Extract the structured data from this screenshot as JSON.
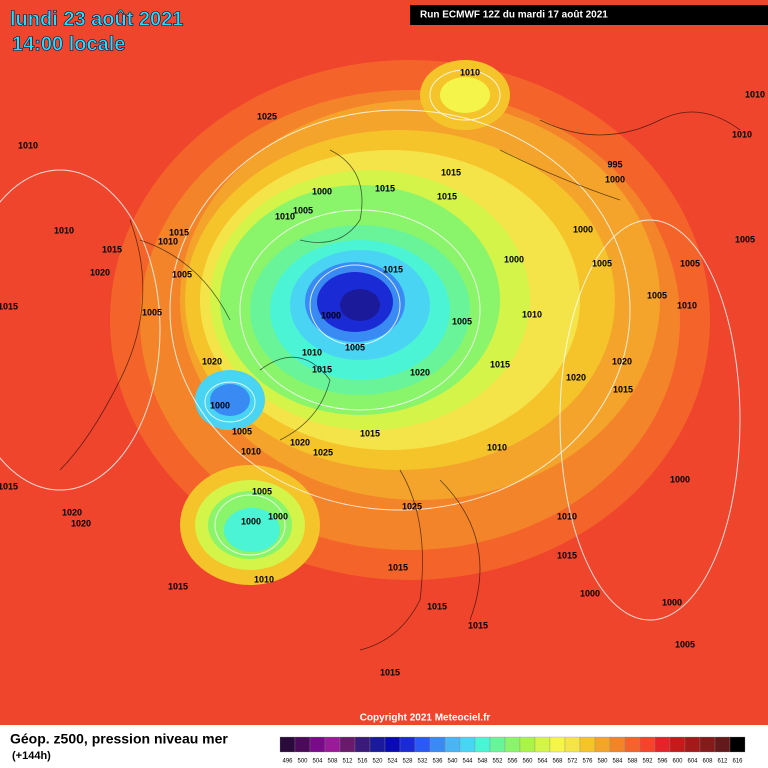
{
  "header": {
    "date": "lundi 23 août 2021",
    "time": "14:00 locale",
    "run": "Run ECMWF 12Z du mardi 17 août 2021"
  },
  "copyright": "Copyright 2021 Meteociel.fr",
  "footer": {
    "title": "Géop. z500, pression niveau mer",
    "lead": "(+144h)"
  },
  "pressure_labels": [
    1010,
    1025,
    1010,
    1010,
    1010,
    995,
    1000,
    1000,
    1015,
    1015,
    1015,
    1005,
    1010,
    1010,
    1015,
    1010,
    1000,
    1005,
    1015,
    1000,
    1005,
    1005,
    1020,
    1005,
    1015,
    1015,
    1005,
    1010,
    1010,
    1005,
    1000,
    1005,
    1005,
    1010,
    1020,
    1020,
    1015,
    1015,
    1020,
    1020,
    1015,
    1000,
    1005,
    1015,
    1020,
    1010,
    1025,
    1010,
    1015,
    1005,
    1020,
    1020,
    1000,
    1000,
    1025,
    1010,
    1015,
    1015,
    1010,
    1015,
    1000,
    1015,
    1015,
    1015,
    1000,
    1000,
    1005
  ],
  "colorbar": {
    "labels": [
      496,
      500,
      504,
      508,
      512,
      516,
      520,
      524,
      528,
      532,
      536,
      540,
      544,
      548,
      552,
      556,
      560,
      564,
      568,
      572,
      576,
      580,
      584,
      588,
      592,
      596,
      600,
      604,
      608,
      612,
      616
    ],
    "colors": [
      "#2a0a3a",
      "#4b0a5a",
      "#7a0a8a",
      "#9a1a9a",
      "#6a1a6a",
      "#3a1a7a",
      "#1a1a9a",
      "#0a0ab4",
      "#1a2ad4",
      "#2a5af4",
      "#3a8af4",
      "#4ab4f4",
      "#4ad4f4",
      "#4af4d4",
      "#6af49a",
      "#8af46a",
      "#aaf44a",
      "#d4f44a",
      "#f4f44a",
      "#f4e44a",
      "#f4c42a",
      "#f4a42a",
      "#f4842a",
      "#f4642a",
      "#f4442a",
      "#e4242a",
      "#c41a1a",
      "#a41a1a",
      "#841a1a",
      "#641a1a",
      "#000000"
    ]
  }
}
